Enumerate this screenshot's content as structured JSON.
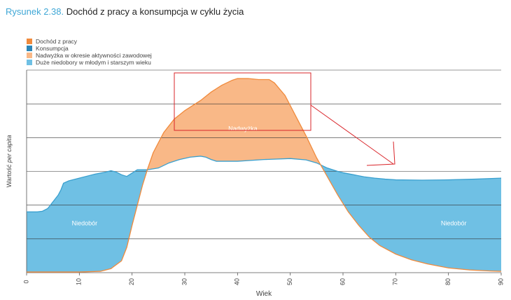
{
  "figure": {
    "prefix": "Rysunek 2.38.",
    "title": "Dochód z pracy a konsumpcja w cyklu życia"
  },
  "colors": {
    "income": "#f08a3c",
    "consumption": "#2c86b8",
    "surplus": "#f9b887",
    "deficit": "#6fc0e4",
    "consumption_line": "#3aa0cf",
    "annotation": "#d9252a",
    "grid": "#333333"
  },
  "legend": [
    {
      "label": "Dochód z pracy",
      "color": "#f08a3c"
    },
    {
      "label": "Konsumpcja",
      "color": "#2c86b8"
    },
    {
      "label": "Nadwyżka w okresie aktywności zawodowej",
      "color": "#f9b887"
    },
    {
      "label": "Duże niedobory w młodym i starszym wieku",
      "color": "#6fc0e4"
    }
  ],
  "chart_data": {
    "type": "area",
    "title": "Dochód z pracy a konsumpcja w cyklu życia",
    "xlabel": "Wiek",
    "ylabel_prefix": "Wartość ",
    "ylabel_italic": "per capita",
    "xlim": [
      0,
      90
    ],
    "ylim": [
      0,
      6
    ],
    "x_ticks": [
      0,
      10,
      20,
      30,
      40,
      50,
      60,
      70,
      80,
      90
    ],
    "y_ticks": [
      1,
      2,
      3,
      4,
      5,
      6
    ],
    "y_tick_labels_shown": false,
    "grid": "horizontal",
    "series": [
      {
        "name": "Dochód z pracy",
        "x": [
          0,
          5,
          10,
          14,
          16,
          18,
          19,
          20,
          21,
          22,
          23,
          24,
          26,
          28,
          30,
          33,
          35,
          37,
          39,
          40,
          42,
          44,
          46,
          47,
          49,
          51,
          53,
          55,
          57,
          59,
          61,
          63,
          65,
          67,
          70,
          73,
          76,
          80,
          84,
          88,
          90
        ],
        "y": [
          0.02,
          0.02,
          0.02,
          0.04,
          0.12,
          0.35,
          0.75,
          1.4,
          2.0,
          2.6,
          3.1,
          3.55,
          4.15,
          4.55,
          4.8,
          5.1,
          5.35,
          5.55,
          5.7,
          5.75,
          5.75,
          5.72,
          5.72,
          5.62,
          5.25,
          4.65,
          4.05,
          3.4,
          2.85,
          2.3,
          1.8,
          1.4,
          1.05,
          0.8,
          0.55,
          0.38,
          0.26,
          0.14,
          0.08,
          0.05,
          0.04
        ]
      },
      {
        "name": "Konsumpcja",
        "x": [
          0,
          2,
          3,
          4,
          5,
          6,
          6.5,
          7,
          8,
          10,
          13,
          15,
          16,
          17,
          18,
          19,
          20,
          21,
          22,
          23,
          25,
          27,
          29,
          31,
          33,
          34,
          35,
          36,
          38,
          40,
          45,
          50,
          53,
          55,
          57,
          59,
          60,
          62,
          64,
          66,
          68,
          70,
          75,
          80,
          85,
          90
        ],
        "y": [
          1.8,
          1.8,
          1.82,
          1.9,
          2.1,
          2.3,
          2.45,
          2.65,
          2.72,
          2.8,
          2.92,
          2.98,
          3.02,
          2.98,
          2.9,
          2.85,
          2.95,
          3.05,
          3.05,
          3.05,
          3.1,
          3.25,
          3.35,
          3.42,
          3.45,
          3.42,
          3.35,
          3.3,
          3.3,
          3.3,
          3.35,
          3.38,
          3.34,
          3.25,
          3.1,
          3.0,
          2.96,
          2.9,
          2.84,
          2.8,
          2.77,
          2.75,
          2.74,
          2.75,
          2.77,
          2.8
        ]
      }
    ],
    "annotations": [
      {
        "text": "Niedobór",
        "x": 11,
        "y": 1.4
      },
      {
        "text": "Nadwyżka",
        "x": 41,
        "y": 4.2
      },
      {
        "text": "Niedobór",
        "x": 81,
        "y": 1.4
      }
    ]
  }
}
